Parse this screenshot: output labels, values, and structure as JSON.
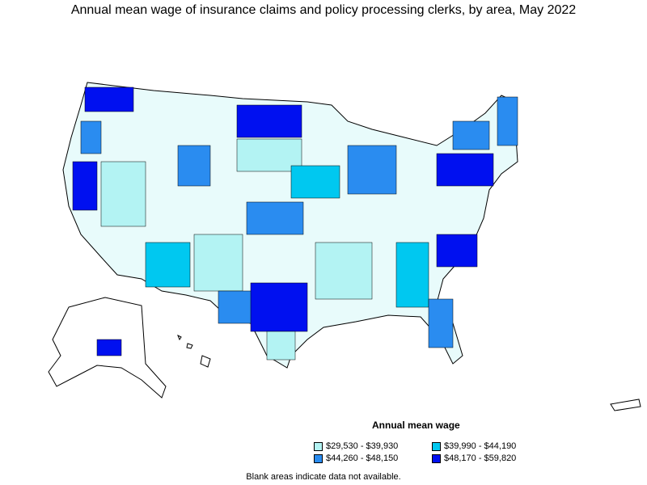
{
  "title": "Annual mean wage of insurance claims and policy processing clerks, by area, May 2022",
  "legend": {
    "title": "Annual mean wage",
    "items": [
      {
        "label": "$29,530 - $39,930",
        "color": "#b3f3f3"
      },
      {
        "label": "$39,990 - $44,190",
        "color": "#00c8f0"
      },
      {
        "label": "$44,260 - $48,150",
        "color": "#2a8cf0"
      },
      {
        "label": "$48,170 - $59,820",
        "color": "#0010f0"
      }
    ]
  },
  "footnote": "Blank areas indicate data not available.",
  "colors": {
    "outline": "#000000",
    "no_data": "#ffffff"
  }
}
